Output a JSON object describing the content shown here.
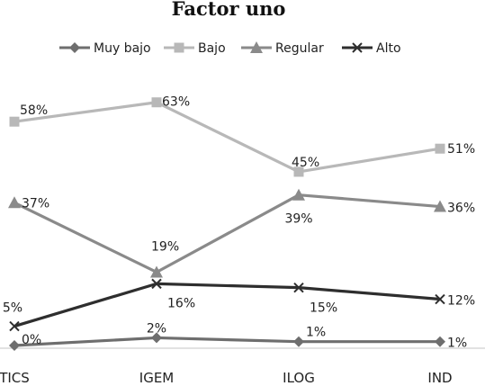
{
  "chart_data": {
    "type": "line",
    "title": "Factor uno",
    "xlabel": "",
    "ylabel": "",
    "categories": [
      "TICS",
      "IGEM",
      "ILOG",
      "IND"
    ],
    "ylim": [
      0,
      70
    ],
    "grid": false,
    "legend_position": "top",
    "series": [
      {
        "name": "Muy bajo",
        "values": [
          0,
          2,
          1,
          1
        ],
        "labels": [
          "0%",
          "2%",
          "1%",
          "1%"
        ],
        "color": "#6e6e6e",
        "marker": "diamond"
      },
      {
        "name": "Bajo",
        "values": [
          58,
          63,
          45,
          51
        ],
        "labels": [
          "58%",
          "63%",
          "45%",
          "51%"
        ],
        "color": "#b8b8b8",
        "marker": "square"
      },
      {
        "name": "Regular",
        "values": [
          37,
          19,
          39,
          36
        ],
        "labels": [
          "37%",
          "19%",
          "39%",
          "36%"
        ],
        "color": "#8a8a8a",
        "marker": "triangle"
      },
      {
        "name": "Alto",
        "values": [
          5,
          16,
          15,
          12
        ],
        "labels": [
          "5%",
          "16%",
          "15%",
          "12%"
        ],
        "color": "#2e2e2e",
        "marker": "x"
      }
    ]
  }
}
